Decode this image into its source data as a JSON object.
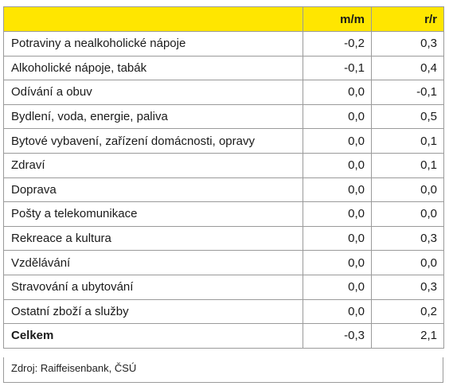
{
  "header": {
    "col_label": "",
    "col_mm": "m/m",
    "col_rr": "r/r",
    "accent_color": "#ffe600"
  },
  "rows": [
    {
      "label": "Potraviny a nealkoholické nápoje",
      "mm": "-0,2",
      "rr": "0,3"
    },
    {
      "label": "Alkoholické nápoje, tabák",
      "mm": "-0,1",
      "rr": "0,4"
    },
    {
      "label": "Odívání a obuv",
      "mm": "0,0",
      "rr": "-0,1"
    },
    {
      "label": "Bydlení, voda, energie, paliva",
      "mm": "0,0",
      "rr": "0,5"
    },
    {
      "label": "Bytové vybavení, zařízení domácnosti, opravy",
      "mm": "0,0",
      "rr": "0,1"
    },
    {
      "label": "Zdraví",
      "mm": "0,0",
      "rr": "0,1"
    },
    {
      "label": "Doprava",
      "mm": "0,0",
      "rr": "0,0"
    },
    {
      "label": "Pošty a telekomunikace",
      "mm": "0,0",
      "rr": "0,0"
    },
    {
      "label": "Rekreace a kultura",
      "mm": "0,0",
      "rr": "0,3"
    },
    {
      "label": "Vzdělávání",
      "mm": "0,0",
      "rr": "0,0"
    },
    {
      "label": "Stravování a ubytování",
      "mm": "0,0",
      "rr": "0,3"
    },
    {
      "label": "Ostatní zboží a služby",
      "mm": "0,0",
      "rr": "0,2"
    }
  ],
  "total": {
    "label": "Celkem",
    "mm": "-0,3",
    "rr": "2,1"
  },
  "source": "Zdroj: Raiffeisenbank, ČSÚ"
}
